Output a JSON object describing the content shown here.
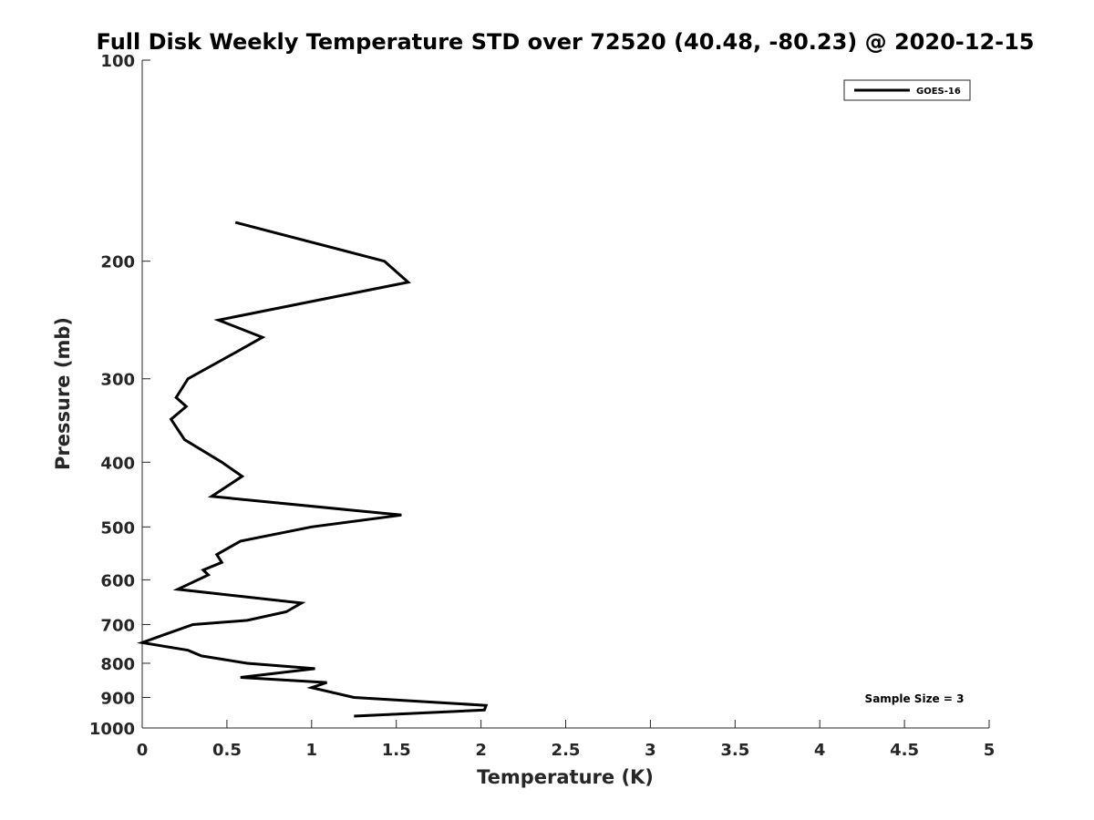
{
  "chart_data": {
    "type": "line",
    "title": "Full Disk Weekly Temperature STD over 72520 (40.48, -80.23) @ 2020-12-15",
    "xlabel": "Temperature (K)",
    "ylabel": "Pressure (mb)",
    "xlim": [
      0,
      5
    ],
    "ylim": [
      100,
      1000
    ],
    "y_scale": "log",
    "y_reversed": true,
    "x_ticks": [
      "0",
      "0.5",
      "1",
      "1.5",
      "2",
      "2.5",
      "3",
      "3.5",
      "4",
      "4.5",
      "5"
    ],
    "y_ticks": [
      "100",
      "200",
      "300",
      "400",
      "500",
      "600",
      "700",
      "800",
      "900",
      "1000"
    ],
    "grid": false,
    "legend_position": "top-right",
    "annotation": "Sample Size = 3",
    "series": [
      {
        "name": "GOES-16",
        "color": "#000000",
        "x": [
          0.55,
          1.43,
          1.57,
          0.45,
          0.71,
          0.54,
          0.27,
          0.2,
          0.26,
          0.17,
          0.25,
          0.47,
          0.59,
          0.41,
          1.53,
          1.0,
          0.58,
          0.44,
          0.47,
          0.36,
          0.39,
          0.21,
          0.94,
          0.85,
          0.62,
          0.3,
          0.13,
          0.0,
          0.27,
          0.35,
          0.62,
          1.02,
          0.58,
          1.09,
          1.0,
          1.25,
          2.03,
          2.02,
          1.25
        ],
        "y": [
          175,
          200,
          215,
          245,
          260,
          275,
          300,
          320,
          330,
          345,
          370,
          400,
          420,
          450,
          480,
          500,
          525,
          550,
          565,
          580,
          590,
          620,
          650,
          670,
          690,
          700,
          725,
          745,
          765,
          780,
          800,
          815,
          840,
          855,
          870,
          900,
          925,
          940,
          960
        ]
      }
    ]
  }
}
